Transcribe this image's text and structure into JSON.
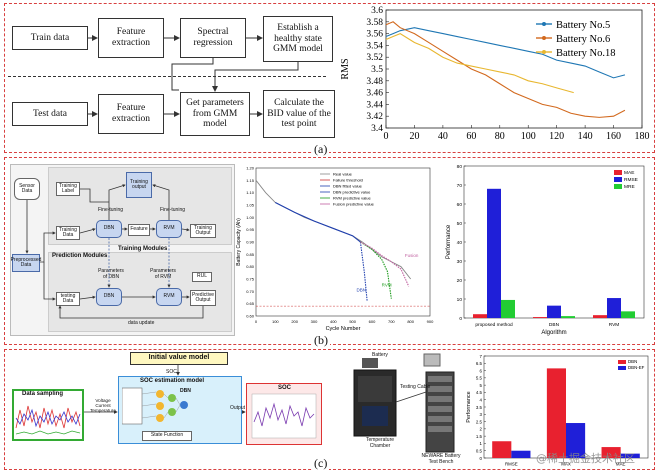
{
  "panel_a": {
    "label": "(a)",
    "flow": {
      "train_data": "Train data",
      "feature_extraction_1": "Feature extraction",
      "spectral_regression": "Spectral regression",
      "establish_gmm": "Establish a healthy state GMM model",
      "test_data": "Test data",
      "feature_extraction_2": "Feature extraction",
      "get_parameters": "Get parameters from GMM model",
      "calculate_bid": "Calculate the BID value of the test point"
    }
  },
  "panel_b": {
    "label": "(b)",
    "flow": {
      "sensor_data": "Sensor Data",
      "preprocessed_data": "Preprocessed Data",
      "training_label": "Training Label",
      "training_output": "Training output",
      "training_data": "Training Data",
      "dbn": "DBN",
      "feature": "Feature",
      "rvm": "RVM",
      "training_output_2": "Training Output",
      "fine_tuning_1": "Fine-tuning",
      "fine_tuning_2": "Fine-tuning",
      "training_modules": "Training Modules",
      "prediction_modules": "Prediction Modules",
      "params_dbn": "Parameters of DBN",
      "params_rvm": "Parameters of RVM",
      "testing_data": "testing Data",
      "dbn_2": "DBN",
      "rvm_2": "RVM",
      "rul": "RUL",
      "predictive_output": "Predictive Output",
      "data_update": "data update"
    }
  },
  "panel_c": {
    "label": "(c)",
    "flow": {
      "initial_value_model": "Initial value model",
      "soc_init": "SOC",
      "data_sampling": "Data sampling",
      "inputs": "Voltage Current Temperature",
      "soc_estimation_model": "SOC estimation model",
      "dbn": "DBN",
      "state_function": "State Function",
      "output": "Output",
      "soc_plot_title": "SOC",
      "battery": "Battery",
      "temperature_chamber": "Temperature Chamber",
      "newarr": "NEWARE Battery Test Bench",
      "testing_cable": "Testing Cable"
    }
  },
  "watermark": "@稀土掘金技术社区",
  "chart_data": [
    {
      "type": "line",
      "title": "",
      "xlabel": "",
      "ylabel": "RMS",
      "xlim": [
        0,
        180
      ],
      "ylim": [
        3.4,
        3.6
      ],
      "xticks": [
        0,
        20,
        40,
        60,
        80,
        100,
        120,
        140,
        160,
        180
      ],
      "yticks": [
        3.4,
        3.42,
        3.44,
        3.46,
        3.48,
        3.5,
        3.52,
        3.54,
        3.56,
        3.58,
        3.6
      ],
      "legend_position": "top-right",
      "series": [
        {
          "name": "Battery No.5",
          "color": "#1f77b4",
          "x": [
            0,
            5,
            10,
            20,
            30,
            40,
            50,
            60,
            70,
            80,
            90,
            100,
            110,
            120,
            130,
            140,
            150,
            160,
            168
          ],
          "y": [
            3.555,
            3.56,
            3.565,
            3.57,
            3.565,
            3.56,
            3.555,
            3.55,
            3.545,
            3.54,
            3.535,
            3.53,
            3.525,
            3.515,
            3.51,
            3.505,
            3.495,
            3.485,
            3.49
          ]
        },
        {
          "name": "Battery No.6",
          "color": "#d2691e",
          "x": [
            0,
            5,
            10,
            20,
            30,
            40,
            50,
            60,
            70,
            80,
            90,
            100,
            110,
            120,
            130,
            140,
            150,
            160,
            168
          ],
          "y": [
            3.575,
            3.58,
            3.57,
            3.56,
            3.545,
            3.53,
            3.515,
            3.5,
            3.49,
            3.475,
            3.46,
            3.45,
            3.44,
            3.435,
            3.425,
            3.42,
            3.418,
            3.42,
            3.43
          ]
        },
        {
          "name": "Battery No.18",
          "color": "#e8b730",
          "x": [
            0,
            5,
            10,
            20,
            30,
            40,
            50,
            60,
            70,
            80,
            90,
            100,
            110,
            120,
            132
          ],
          "y": [
            3.55,
            3.555,
            3.56,
            3.545,
            3.535,
            3.52,
            3.51,
            3.505,
            3.5,
            3.495,
            3.49,
            3.48,
            3.475,
            3.468,
            3.46
          ]
        }
      ]
    },
    {
      "type": "line",
      "title": "",
      "xlabel": "Cycle Number",
      "ylabel": "Battery Capacity (Ah)",
      "xlim": [
        0,
        900
      ],
      "ylim": [
        0.6,
        1.2
      ],
      "xticks": [
        0,
        100,
        200,
        300,
        400,
        500,
        600,
        700,
        800,
        900
      ],
      "yticks": [
        0.6,
        0.65,
        0.7,
        0.75,
        0.8,
        0.85,
        0.9,
        0.95,
        1.0,
        1.05,
        1.1,
        1.15,
        1.2
      ],
      "legend": [
        "Real value",
        "Failure threshold",
        "DBN fitted value",
        "DBN predictive value",
        "RVM predictive value",
        "Fusion predictive value"
      ],
      "annotations": [
        "DBN",
        "RVM",
        "Fusion"
      ],
      "failure_threshold": 0.64,
      "series": [
        {
          "name": "Real value",
          "color": "#888888",
          "x": [
            0,
            50,
            100,
            150,
            200,
            250,
            300,
            350,
            400,
            450,
            500,
            550,
            600,
            650,
            700,
            750,
            800
          ],
          "y": [
            1.15,
            1.1,
            1.06,
            1.04,
            1.02,
            1.0,
            0.985,
            0.97,
            0.955,
            0.94,
            0.925,
            0.9,
            0.87,
            0.84,
            0.82,
            0.8,
            0.75
          ]
        },
        {
          "name": "DBN fitted value",
          "color": "#1f3fae",
          "x": [
            100,
            200,
            300,
            400,
            500,
            540
          ],
          "y": [
            1.06,
            1.02,
            0.985,
            0.955,
            0.925,
            0.9
          ]
        },
        {
          "name": "DBN predictive value",
          "color": "#1f3fae",
          "x": [
            540,
            560,
            575
          ],
          "y": [
            0.9,
            0.78,
            0.66
          ]
        },
        {
          "name": "RVM predictive value",
          "color": "#1a9a1a",
          "x": [
            540,
            600,
            650,
            680,
            700
          ],
          "y": [
            0.9,
            0.87,
            0.83,
            0.78,
            0.67
          ]
        },
        {
          "name": "Fusion predictive value",
          "color": "#c060a0",
          "x": [
            540,
            600,
            650,
            700,
            750,
            790
          ],
          "y": [
            0.9,
            0.875,
            0.845,
            0.82,
            0.79,
            0.72
          ]
        }
      ]
    },
    {
      "type": "bar",
      "title": "",
      "xlabel": "Algorithm",
      "ylabel": "Performance",
      "categories": [
        "proposed method",
        "DBN",
        "RVM"
      ],
      "ylim": [
        0,
        80
      ],
      "yticks": [
        0,
        10,
        20,
        30,
        40,
        50,
        60,
        70,
        80
      ],
      "legend_position": "top-right",
      "series": [
        {
          "name": "MAE",
          "color": "#e8212f",
          "values": [
            2,
            0.5,
            1.5
          ]
        },
        {
          "name": "RMSE",
          "color": "#1f1fd8",
          "values": [
            68,
            6.5,
            10.5
          ]
        },
        {
          "name": "MRE",
          "color": "#22cc33",
          "values": [
            9.5,
            1,
            3.5
          ]
        }
      ]
    },
    {
      "type": "bar",
      "title": "",
      "xlabel": "",
      "ylabel": "Performance",
      "categories": [
        "RMSE",
        "MAX",
        "MAE"
      ],
      "ylim": [
        0,
        7
      ],
      "yticks": [
        0,
        0.5,
        1,
        1.5,
        2,
        2.5,
        3,
        3.5,
        4,
        4.5,
        5,
        5.5,
        6,
        6.5,
        7
      ],
      "legend_position": "top-right",
      "series": [
        {
          "name": "DBN",
          "color": "#e8212f",
          "values": [
            1.15,
            6.15,
            0.75
          ]
        },
        {
          "name": "DBN-EF",
          "color": "#1f1fd8",
          "values": [
            0.5,
            2.4,
            0.3
          ]
        }
      ]
    }
  ]
}
